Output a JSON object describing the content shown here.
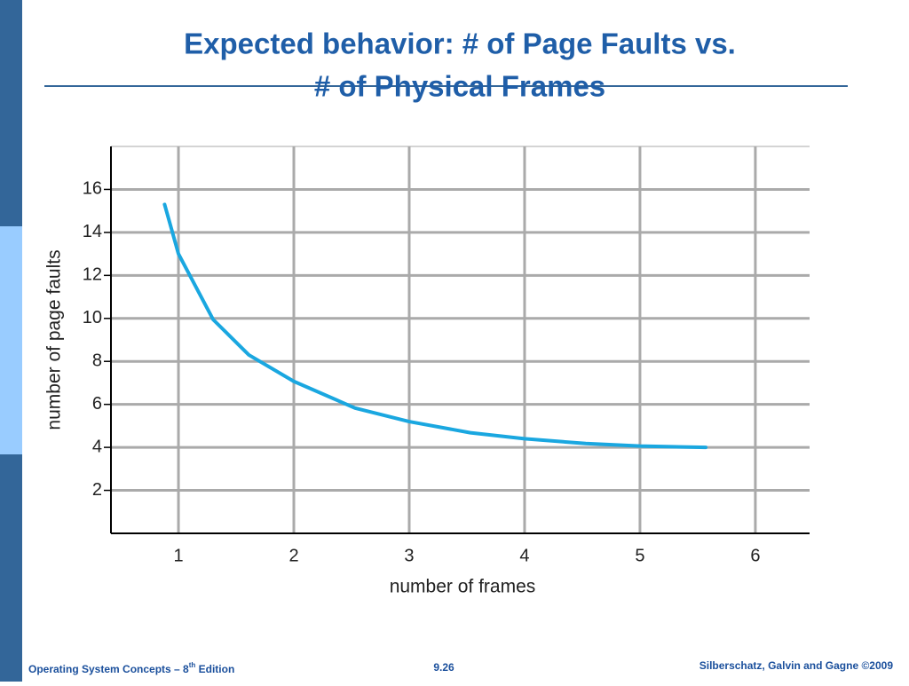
{
  "slide": {
    "title": [
      "Expected behavior:  # of Page Faults vs.",
      "# of Physical Frames"
    ],
    "footer_left": [
      "Operating System Concepts – 8",
      "th",
      " Edition"
    ],
    "footer_center": "9.26",
    "footer_right": "Silberschatz, Galvin and Gagne ©2009"
  },
  "chart_data": {
    "type": "line",
    "x_label": "number of frames",
    "y_label": "number of page faults",
    "x": [
      0.88,
      1,
      1.3,
      1.61,
      2,
      2.53,
      3,
      3.53,
      4,
      4.53,
      5,
      5.57
    ],
    "values": [
      15.3,
      13.0,
      9.95,
      8.3,
      7.07,
      5.83,
      5.2,
      4.68,
      4.4,
      4.18,
      4.06,
      4.0
    ],
    "color": "#1aa7e0",
    "xlim": [
      0.415,
      6.47
    ],
    "xticks": [
      1,
      2,
      3,
      4,
      5,
      6
    ],
    "ylim": [
      0,
      18
    ],
    "yticks": [
      2,
      4,
      6,
      8,
      10,
      12,
      14,
      16
    ],
    "grid": true
  }
}
